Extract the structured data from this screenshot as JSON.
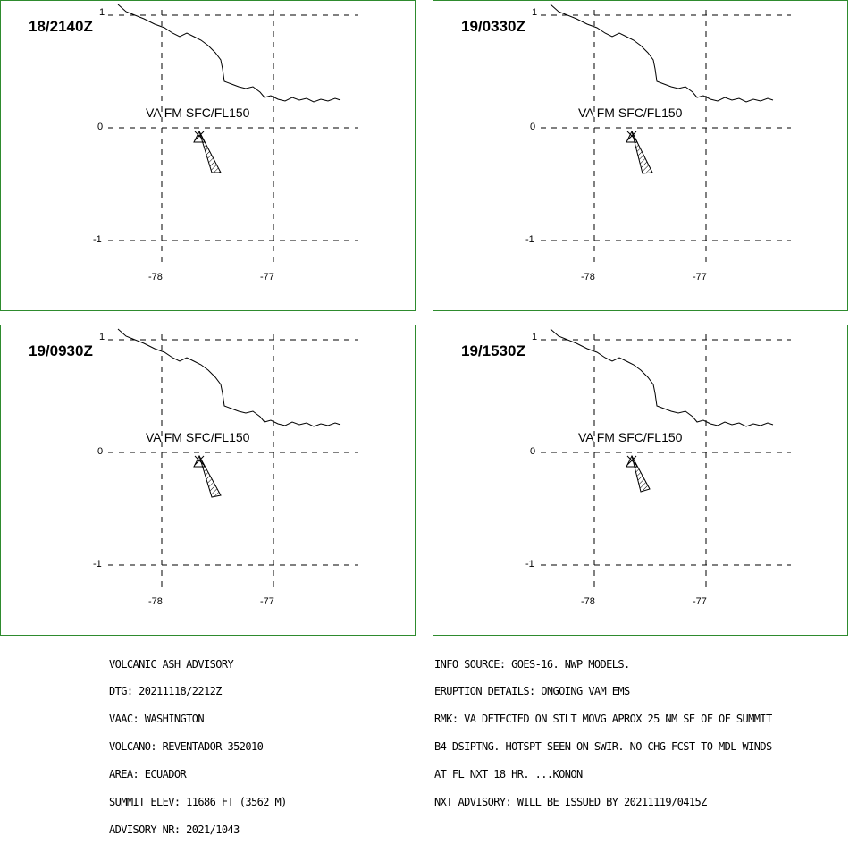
{
  "panels": [
    {
      "time": "18/2140Z",
      "label": "VA FM SFC/FL150"
    },
    {
      "time": "19/0330Z",
      "label": "VA FM SFC/FL150"
    },
    {
      "time": "19/0930Z",
      "label": "VA FM SFC/FL150"
    },
    {
      "time": "19/1530Z",
      "label": "VA FM SFC/FL150"
    }
  ],
  "axes": {
    "lat_ticks": [
      "1",
      "0",
      "-1"
    ],
    "lon_ticks": [
      "-78",
      "-77"
    ]
  },
  "advisory_left": [
    "VOLCANIC ASH ADVISORY",
    "DTG: 20211118/2212Z",
    "VAAC: WASHINGTON",
    "VOLCANO: REVENTADOR 352010",
    "AREA: ECUADOR",
    "SUMMIT ELEV: 11686 FT (3562 M)",
    "ADVISORY NR: 2021/1043"
  ],
  "advisory_right": [
    "INFO SOURCE: GOES-16. NWP MODELS.",
    "ERUPTION DETAILS: ONGOING VAM EMS",
    "RMK: VA DETECTED ON STLT MOVG APROX 25 NM SE OF OF SUMMIT",
    "B4 DSIPTNG. HOTSPT SEEN ON SWIR. NO CHG FCST TO MDL WINDS",
    "AT FL NXT 18 HR. ...KONON",
    "NXT ADVISORY: WILL BE ISSUED BY 20211119/0415Z"
  ],
  "colors": {
    "frame": "#2e8b2e",
    "lines": "#000000"
  }
}
